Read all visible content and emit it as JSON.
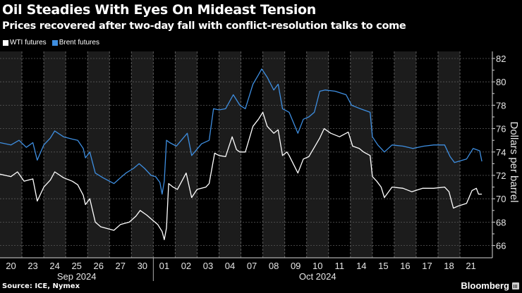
{
  "chart_data": {
    "type": "line",
    "title": "Oil Steadies With Eyes On Mideast Tension",
    "subtitle": "Prices recovered after two-day fall with conflict-resolution talks to come",
    "xlabel": "",
    "ylabel": "Dollars per barrel",
    "ylim": [
      65,
      82.6
    ],
    "yticks": [
      66,
      68,
      70,
      72,
      74,
      76,
      78,
      80,
      82
    ],
    "grid": true,
    "legend_position": "top-left",
    "x_tick_labels": [
      "20",
      "23",
      "24",
      "25",
      "26",
      "27",
      "30",
      "01",
      "02",
      "03",
      "04",
      "07",
      "08",
      "09",
      "10",
      "11",
      "14",
      "15",
      "16",
      "17",
      "18",
      "21"
    ],
    "month_labels": [
      {
        "label": "Sep 2024",
        "start_index": 0,
        "end_index": 6
      },
      {
        "label": "Oct 2024",
        "start_index": 7,
        "end_index": 21
      }
    ],
    "x_unit": "trading day index (0 = Sep 20)",
    "xlim": [
      0,
      22.5
    ],
    "series": [
      {
        "name": "WTI futures",
        "color": "#ffffff",
        "points": [
          [
            0.0,
            72.1
          ],
          [
            0.5,
            71.9
          ],
          [
            0.8,
            72.3
          ],
          [
            1.1,
            71.5
          ],
          [
            1.5,
            71.7
          ],
          [
            1.7,
            69.8
          ],
          [
            2.0,
            71.0
          ],
          [
            2.3,
            71.6
          ],
          [
            2.5,
            72.3
          ],
          [
            2.9,
            71.8
          ],
          [
            3.3,
            71.5
          ],
          [
            3.55,
            71.2
          ],
          [
            3.8,
            70.3
          ],
          [
            3.9,
            69.5
          ],
          [
            4.1,
            70.0
          ],
          [
            4.35,
            68.0
          ],
          [
            4.6,
            67.6
          ],
          [
            5.0,
            67.4
          ],
          [
            5.2,
            67.3
          ],
          [
            5.5,
            67.8
          ],
          [
            5.9,
            68.0
          ],
          [
            6.2,
            68.5
          ],
          [
            6.4,
            69.0
          ],
          [
            6.7,
            68.6
          ],
          [
            6.95,
            68.2
          ],
          [
            7.2,
            67.8
          ],
          [
            7.4,
            67.2
          ],
          [
            7.5,
            66.5
          ],
          [
            7.6,
            67.5
          ],
          [
            7.7,
            71.3
          ],
          [
            7.9,
            71.0
          ],
          [
            8.1,
            70.8
          ],
          [
            8.5,
            72.2
          ],
          [
            8.75,
            70.1
          ],
          [
            9.0,
            70.8
          ],
          [
            9.4,
            71.0
          ],
          [
            9.55,
            71.3
          ],
          [
            9.8,
            73.9
          ],
          [
            10.0,
            73.7
          ],
          [
            10.3,
            73.6
          ],
          [
            10.6,
            75.3
          ],
          [
            10.8,
            74.2
          ],
          [
            10.95,
            74.0
          ],
          [
            11.2,
            74.0
          ],
          [
            11.55,
            76.2
          ],
          [
            11.8,
            76.8
          ],
          [
            12.0,
            77.4
          ],
          [
            12.2,
            76.2
          ],
          [
            12.5,
            75.6
          ],
          [
            12.7,
            75.9
          ],
          [
            12.9,
            73.7
          ],
          [
            13.1,
            74.0
          ],
          [
            13.2,
            73.7
          ],
          [
            13.6,
            72.2
          ],
          [
            13.85,
            73.4
          ],
          [
            14.1,
            73.6
          ],
          [
            14.35,
            74.4
          ],
          [
            14.6,
            75.2
          ],
          [
            14.8,
            76.0
          ],
          [
            15.1,
            75.6
          ],
          [
            15.5,
            75.3
          ],
          [
            15.9,
            75.7
          ],
          [
            16.1,
            74.5
          ],
          [
            16.4,
            74.3
          ],
          [
            16.6,
            74.0
          ],
          [
            16.9,
            73.7
          ],
          [
            17.0,
            71.9
          ],
          [
            17.2,
            71.5
          ],
          [
            17.4,
            71.0
          ],
          [
            17.55,
            70.1
          ],
          [
            17.9,
            71.0
          ],
          [
            18.4,
            70.9
          ],
          [
            18.8,
            70.6
          ],
          [
            19.3,
            70.9
          ],
          [
            19.8,
            70.9
          ],
          [
            20.3,
            71.0
          ],
          [
            20.5,
            70.6
          ],
          [
            20.7,
            69.2
          ],
          [
            20.95,
            69.4
          ],
          [
            21.3,
            69.6
          ],
          [
            21.55,
            70.7
          ],
          [
            21.75,
            70.9
          ],
          [
            21.85,
            70.4
          ],
          [
            22.0,
            70.4
          ]
        ]
      },
      {
        "name": "Brent futures",
        "color": "#3e8ee0",
        "points": [
          [
            0.0,
            74.8
          ],
          [
            0.5,
            74.6
          ],
          [
            0.87,
            75.0
          ],
          [
            1.2,
            74.4
          ],
          [
            1.5,
            74.8
          ],
          [
            1.7,
            73.3
          ],
          [
            2.0,
            74.6
          ],
          [
            2.3,
            75.2
          ],
          [
            2.5,
            75.8
          ],
          [
            2.9,
            75.3
          ],
          [
            3.3,
            75.1
          ],
          [
            3.55,
            75.0
          ],
          [
            3.8,
            74.3
          ],
          [
            3.9,
            73.5
          ],
          [
            4.1,
            74.0
          ],
          [
            4.35,
            72.2
          ],
          [
            4.7,
            71.8
          ],
          [
            5.0,
            71.5
          ],
          [
            5.2,
            71.3
          ],
          [
            5.5,
            71.8
          ],
          [
            5.75,
            72.2
          ],
          [
            6.1,
            72.6
          ],
          [
            6.35,
            73.0
          ],
          [
            6.6,
            72.6
          ],
          [
            6.9,
            72.0
          ],
          [
            7.1,
            71.9
          ],
          [
            7.3,
            71.4
          ],
          [
            7.4,
            70.4
          ],
          [
            7.5,
            71.5
          ],
          [
            7.6,
            75.0
          ],
          [
            7.75,
            74.8
          ],
          [
            8.05,
            74.5
          ],
          [
            8.55,
            75.6
          ],
          [
            8.75,
            73.7
          ],
          [
            9.2,
            74.7
          ],
          [
            9.55,
            75.0
          ],
          [
            9.75,
            77.7
          ],
          [
            10.0,
            77.6
          ],
          [
            10.3,
            77.7
          ],
          [
            10.65,
            78.9
          ],
          [
            10.95,
            78.0
          ],
          [
            11.2,
            77.7
          ],
          [
            11.55,
            79.8
          ],
          [
            11.8,
            80.6
          ],
          [
            11.95,
            81.1
          ],
          [
            12.2,
            80.4
          ],
          [
            12.5,
            79.3
          ],
          [
            12.7,
            79.8
          ],
          [
            12.9,
            77.7
          ],
          [
            13.2,
            77.4
          ],
          [
            13.6,
            75.6
          ],
          [
            13.85,
            76.8
          ],
          [
            14.1,
            77.0
          ],
          [
            14.35,
            77.4
          ],
          [
            14.6,
            79.2
          ],
          [
            14.85,
            79.3
          ],
          [
            15.3,
            79.2
          ],
          [
            15.8,
            78.9
          ],
          [
            16.05,
            78.0
          ],
          [
            16.45,
            77.7
          ],
          [
            16.9,
            77.4
          ],
          [
            17.0,
            75.3
          ],
          [
            17.25,
            74.6
          ],
          [
            17.55,
            74.0
          ],
          [
            17.9,
            74.6
          ],
          [
            18.4,
            74.5
          ],
          [
            18.85,
            74.3
          ],
          [
            19.35,
            74.5
          ],
          [
            19.8,
            74.6
          ],
          [
            20.3,
            74.6
          ],
          [
            20.55,
            73.6
          ],
          [
            20.75,
            73.1
          ],
          [
            21.3,
            73.4
          ],
          [
            21.6,
            74.3
          ],
          [
            21.9,
            74.1
          ],
          [
            22.0,
            73.2
          ]
        ]
      }
    ]
  },
  "header": {
    "title": "Oil Steadies With Eyes On Mideast Tension",
    "subtitle": "Prices recovered after two-day fall with conflict-resolution talks to come"
  },
  "legend": [
    {
      "label": "WTI futures",
      "color": "#ffffff"
    },
    {
      "label": "Brent futures",
      "color": "#3e8ee0"
    }
  ],
  "footer": {
    "source": "Source: ICE, Nymex",
    "brand": "Bloomberg"
  },
  "colors": {
    "background": "#000000",
    "band": "#1c1c1c",
    "grid": "#5a5a5a",
    "axis": "#d8d8d8"
  }
}
